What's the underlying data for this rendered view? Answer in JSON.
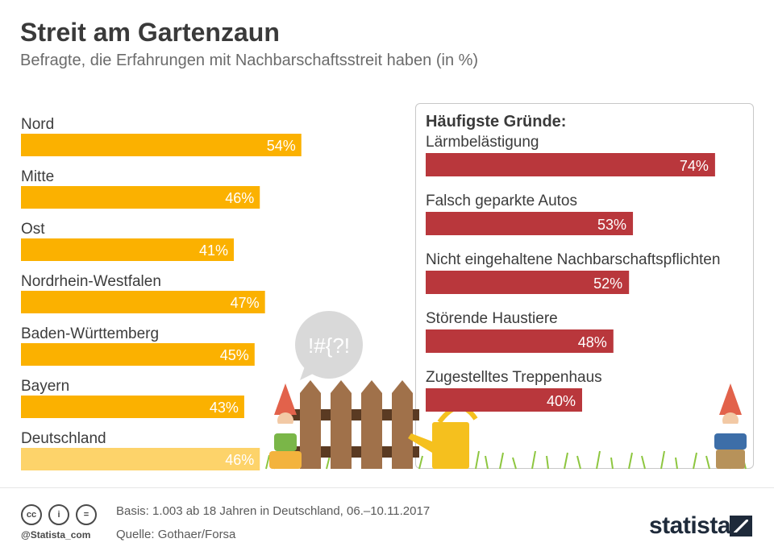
{
  "title": "Streit am Gartenzaun",
  "subtitle": "Befragte, die Erfahrungen mit Nachbarschaftsstreit haben (in %)",
  "speech_bubble": "!#{?!",
  "chart_data": [
    {
      "type": "bar",
      "orientation": "horizontal",
      "categories": [
        "Nord",
        "Mitte",
        "Ost",
        "Nordrhein-Westfalen",
        "Baden-Württemberg",
        "Bayern",
        "Deutschland"
      ],
      "values": [
        54,
        46,
        41,
        47,
        45,
        43,
        46
      ],
      "value_labels": [
        "54%",
        "46%",
        "41%",
        "47%",
        "45%",
        "43%",
        "46%"
      ],
      "colors": [
        "#fbb100",
        "#fbb100",
        "#fbb100",
        "#fbb100",
        "#fbb100",
        "#fbb100",
        "#fdd36a"
      ],
      "xlim": [
        0,
        100
      ]
    },
    {
      "type": "bar",
      "orientation": "horizontal",
      "title": "Häufigste Gründe:",
      "categories": [
        "Lärmbelästigung",
        "Falsch geparkte Autos",
        "Nicht eingehaltene Nachbarschaftspflichten",
        "Störende Haustiere",
        "Zugestelltes Treppenhaus"
      ],
      "values": [
        74,
        53,
        52,
        48,
        40
      ],
      "value_labels": [
        "74%",
        "53%",
        "52%",
        "48%",
        "40%"
      ],
      "color": "#b9373c",
      "xlim": [
        0,
        100
      ]
    }
  ],
  "footer": {
    "cc_labels": [
      "cc",
      "i",
      "="
    ],
    "handle": "@Statista_com",
    "basis": "Basis: 1.003 ab 18 Jahren in Deutschland, 06.–10.11.2017",
    "source": "Quelle: Gothaer/Forsa",
    "brand": "statista"
  }
}
